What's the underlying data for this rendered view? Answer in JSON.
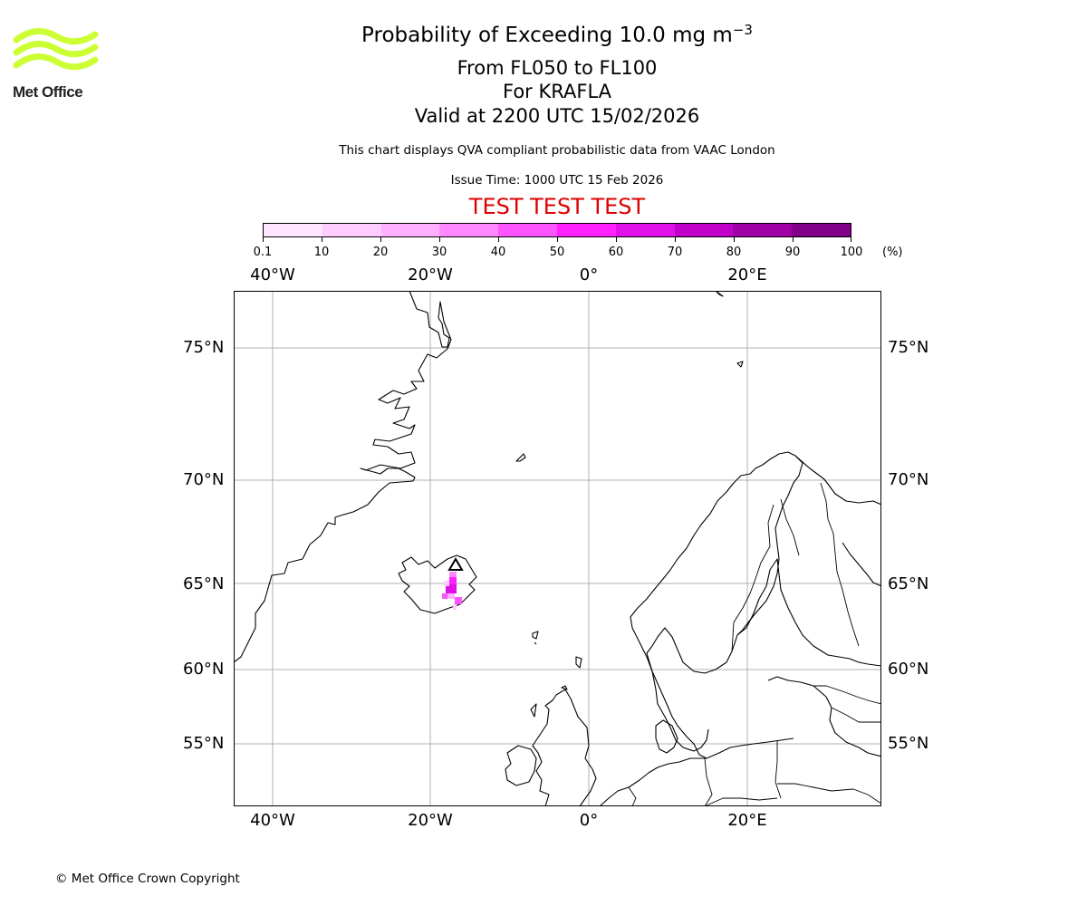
{
  "header": {
    "title": "Probability of Exceeding 10.0 mg m",
    "title_exponent": "−3",
    "flight_levels": "From FL050 to FL100",
    "volcano": "For KRAFLA",
    "valid_time": "Valid at 2200 UTC 15/02/2026",
    "description": "This chart displays QVA compliant probabilistic data from VAAC London",
    "issue_time": "Issue Time: 1000 UTC 15 Feb 2026",
    "test_banner": "TEST TEST TEST"
  },
  "logo": {
    "text": "Met Office",
    "color": "#ccff33"
  },
  "colorbar": {
    "unit": "(%)",
    "tick_labels": [
      "0.1",
      "10",
      "20",
      "30",
      "40",
      "50",
      "60",
      "70",
      "80",
      "90",
      "100"
    ],
    "colors": [
      "#ffe5ff",
      "#ffccff",
      "#ffb0ff",
      "#ff88ff",
      "#ff55ff",
      "#ff22ff",
      "#e010e8",
      "#c000c8",
      "#a000a8",
      "#800088",
      "#5c005c"
    ]
  },
  "map": {
    "lon_labels": [
      "40°W",
      "20°W",
      "0°",
      "20°E"
    ],
    "lat_labels": [
      "75°N",
      "70°N",
      "65°N",
      "60°N",
      "55°N"
    ],
    "volcano_name": "KRAFLA",
    "gridline_color": "#b0b0b0"
  },
  "footer": {
    "copyright": "© Met Office Crown Copyright"
  }
}
